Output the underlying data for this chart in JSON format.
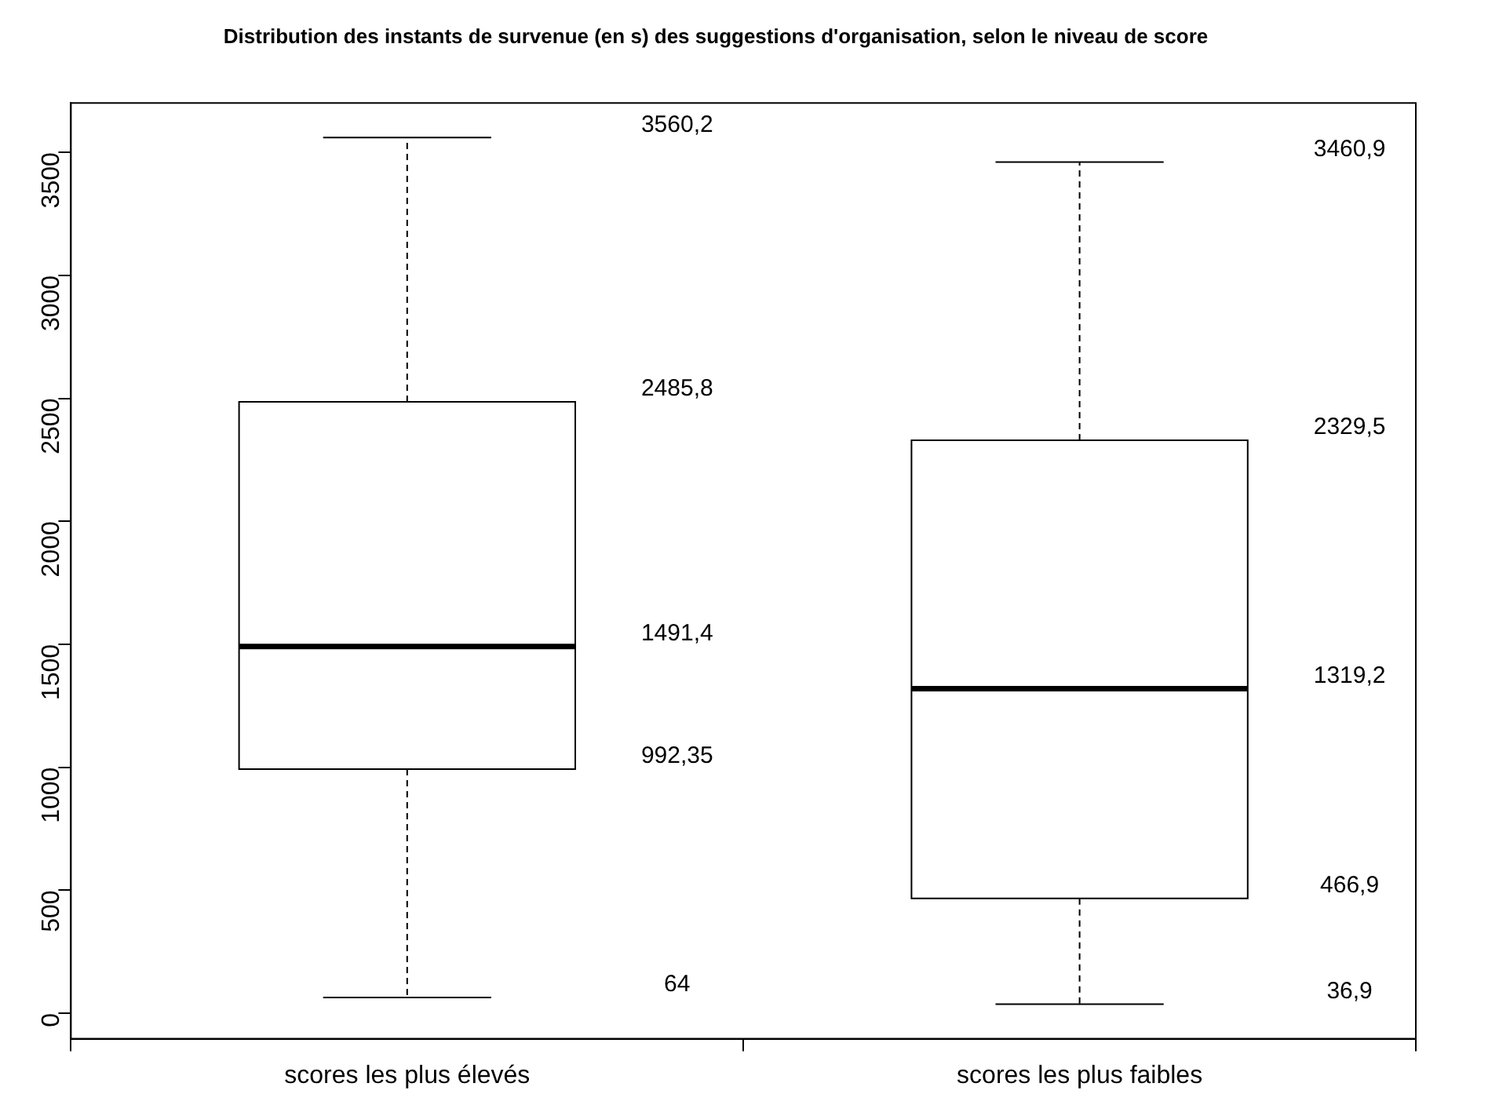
{
  "chart_data": {
    "type": "box",
    "title": "Distribution des instants de survenue (en s) des suggestions d'organisation, selon le niveau de score",
    "categories": [
      "scores les plus élevés",
      "scores les plus faibles"
    ],
    "boxes": [
      {
        "low": 64,
        "q1": 992.35,
        "median": 1491.4,
        "q3": 2485.8,
        "high": 3560.2
      },
      {
        "low": 36.9,
        "q1": 466.9,
        "median": 1319.2,
        "q3": 2329.5,
        "high": 3460.9
      }
    ],
    "ylim": [
      -104,
      3701
    ],
    "yticks": [
      0,
      500,
      1000,
      1500,
      2000,
      2500,
      3000,
      3500
    ],
    "grid": false,
    "annotations": [
      "3560,2",
      "2485,8",
      "1491,4",
      "992,35",
      "64",
      "3460,9",
      "2329,5",
      "1319,2",
      "466,9",
      "36,9"
    ]
  }
}
